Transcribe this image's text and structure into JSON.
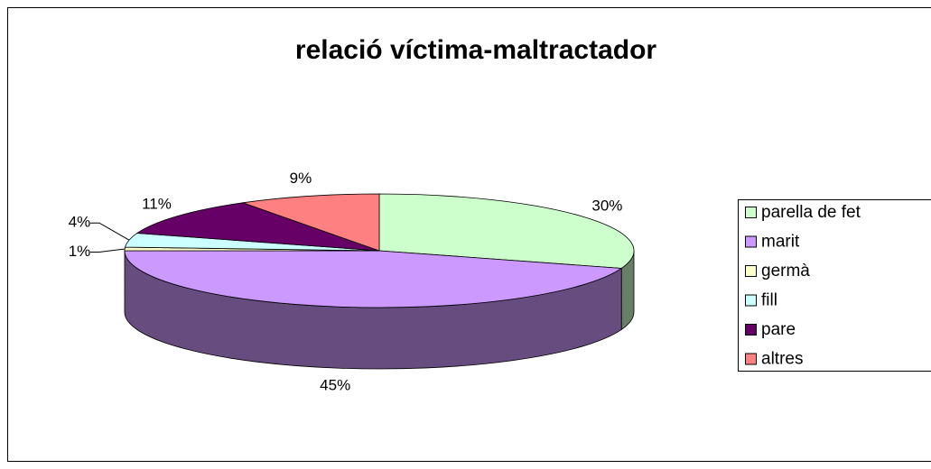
{
  "chart_data": {
    "type": "pie",
    "title": "relació víctima-maltractador",
    "categories": [
      "parella de fet",
      "marit",
      "germà",
      "fill",
      "pare",
      "altres"
    ],
    "values": [
      30,
      45,
      1,
      4,
      11,
      9
    ],
    "value_labels": [
      "30%",
      "45%",
      "1%",
      "4%",
      "11%",
      "9%"
    ],
    "colors": [
      "#ccffcc",
      "#cc99ff",
      "#ffffcc",
      "#ccffff",
      "#660066",
      "#ff8080"
    ],
    "legend": "right"
  }
}
